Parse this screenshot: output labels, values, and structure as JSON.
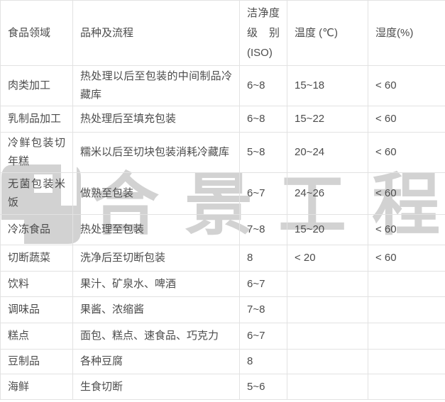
{
  "colors": {
    "background": "#ffffff",
    "border": "#e2e2e2",
    "text": "#4c4c4c",
    "watermark": "#d2d2d2"
  },
  "watermark": {
    "logo_icon": "company-logo-icon",
    "text": "合景工程"
  },
  "table": {
    "columns": [
      {
        "key": "field",
        "label": "食品领域"
      },
      {
        "key": "process",
        "label": "品种及流程"
      },
      {
        "key": "iso",
        "label": "洁净度级别(ISO)"
      },
      {
        "key": "temp",
        "label": "温度 (℃)"
      },
      {
        "key": "humidity",
        "label": "湿度(%)"
      }
    ],
    "rows": [
      {
        "field": "肉类加工",
        "process": "热处理以后至包装的中间制品冷藏库",
        "iso": "6~8",
        "temp": "15~18",
        "humidity": "< 60"
      },
      {
        "field": "乳制品加工",
        "process": "热处理后至填充包装",
        "iso": "6~8",
        "temp": "15~22",
        "humidity": "< 60"
      },
      {
        "field": "冷鲜包装切年糕",
        "process": "糯米以后至切块包装消耗冷藏库",
        "iso": "5~8",
        "temp": "20~24",
        "humidity": "< 60"
      },
      {
        "field": "无菌包装米饭",
        "process": "做熟至包装",
        "iso": "6~7",
        "temp": "24~26",
        "humidity": "< 60"
      },
      {
        "field": "冷冻食品",
        "process": "热处理至包装",
        "iso": "7~8",
        "temp": "15~20",
        "humidity": "< 60"
      },
      {
        "field": "切断蔬菜",
        "process": "洗净后至切断包装",
        "iso": "8",
        "temp": "< 20",
        "humidity": "< 60"
      },
      {
        "field": "饮料",
        "process": "果汁、矿泉水、啤酒",
        "iso": "6~7",
        "temp": "",
        "humidity": ""
      },
      {
        "field": "调味品",
        "process": "果酱、浓缩酱",
        "iso": "7~8",
        "temp": "",
        "humidity": ""
      },
      {
        "field": "糕点",
        "process": "面包、糕点、速食品、巧克力",
        "iso": "6~7",
        "temp": "",
        "humidity": ""
      },
      {
        "field": "豆制品",
        "process": "各种豆腐",
        "iso": "8",
        "temp": "",
        "humidity": ""
      },
      {
        "field": "海鲜",
        "process": "生食切断",
        "iso": "5~6",
        "temp": "",
        "humidity": ""
      }
    ]
  }
}
